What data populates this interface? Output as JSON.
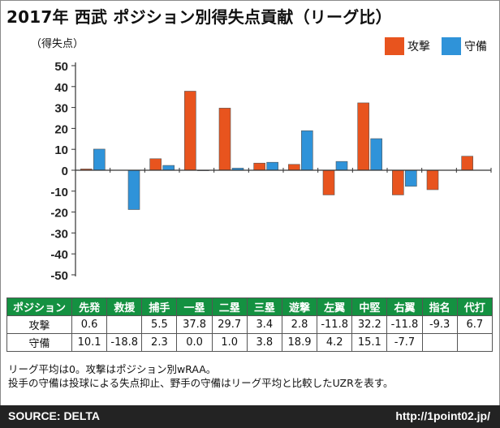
{
  "title": "2017年 西武 ポジション別得失点貢献（リーグ比）",
  "colors": {
    "offense": "#e8541e",
    "defense": "#2f93d9",
    "header_bg": "#149141",
    "footer_bg": "#232323"
  },
  "chart_data": {
    "type": "bar",
    "title": "2017年 西武 ポジション別得失点貢献（リーグ比）",
    "ylabel": "（得失点）",
    "xlabel": "",
    "ylim": [
      -50,
      50
    ],
    "yticks": [
      50,
      40,
      30,
      20,
      10,
      0,
      -10,
      -20,
      -30,
      -40,
      -50
    ],
    "categories": [
      "先発",
      "救援",
      "捕手",
      "一塁",
      "二塁",
      "三塁",
      "遊撃",
      "左翼",
      "中堅",
      "右翼",
      "指名",
      "代打"
    ],
    "series": [
      {
        "name": "攻撃",
        "color": "#e8541e",
        "values": [
          0.6,
          null,
          5.5,
          37.8,
          29.7,
          3.4,
          2.8,
          -11.8,
          32.2,
          -11.8,
          -9.3,
          6.7
        ]
      },
      {
        "name": "守備",
        "color": "#2f93d9",
        "values": [
          10.1,
          -18.8,
          2.3,
          0.0,
          1.0,
          3.8,
          18.9,
          4.2,
          15.1,
          -7.7,
          null,
          null
        ]
      }
    ],
    "legend_position": "top-right",
    "grid": false
  },
  "table": {
    "corner": "ポジション",
    "columns": [
      "先発",
      "救援",
      "捕手",
      "一塁",
      "二塁",
      "三塁",
      "遊撃",
      "左翼",
      "中堅",
      "右翼",
      "指名",
      "代打"
    ],
    "rows": [
      {
        "label": "攻撃",
        "cells": [
          "0.6",
          "",
          "5.5",
          "37.8",
          "29.7",
          "3.4",
          "2.8",
          "-11.8",
          "32.2",
          "-11.8",
          "-9.3",
          "6.7"
        ]
      },
      {
        "label": "守備",
        "cells": [
          "10.1",
          "-18.8",
          "2.3",
          "0.0",
          "1.0",
          "3.8",
          "18.9",
          "4.2",
          "15.1",
          "-7.7",
          "",
          ""
        ]
      }
    ]
  },
  "notes": [
    "リーグ平均は0。攻撃はポジション別wRAA。",
    "投手の守備は投球による失点抑止、野手の守備はリーグ平均と比較したUZRを表す。"
  ],
  "footer": {
    "source": "SOURCE: DELTA",
    "url": "http://1point02.jp/"
  }
}
